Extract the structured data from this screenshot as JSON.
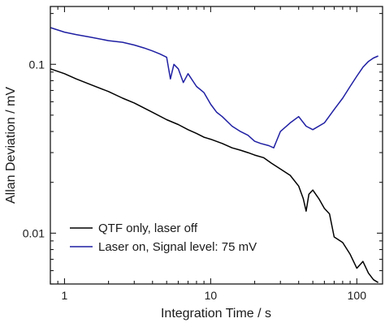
{
  "chart_data": {
    "type": "line",
    "title": "",
    "xlabel": "Integration Time / s",
    "ylabel": "Allan Deviation / mV",
    "xscale": "log",
    "yscale": "log",
    "xlim": [
      0.8,
      150
    ],
    "ylim": [
      0.005,
      0.22
    ],
    "xticks": [
      {
        "value": 1,
        "label": "1"
      },
      {
        "value": 10,
        "label": "10"
      },
      {
        "value": 100,
        "label": "100"
      }
    ],
    "yticks": [
      {
        "value": 0.01,
        "label": "0.01"
      },
      {
        "value": 0.1,
        "label": "0.1"
      }
    ],
    "grid": false,
    "legend_position": "bottom-left",
    "series": [
      {
        "name": "QTF only, laser off",
        "color": "#000000",
        "x": [
          0.8,
          1.0,
          1.2,
          1.5,
          2.0,
          2.5,
          3.0,
          4.0,
          5.0,
          6.0,
          7.0,
          8.0,
          9.0,
          10,
          12,
          14,
          16,
          18,
          20,
          23,
          26,
          30,
          35,
          40,
          43,
          45,
          47,
          50,
          55,
          60,
          65,
          70,
          80,
          90,
          100,
          110,
          120,
          130,
          140
        ],
        "y": [
          0.094,
          0.088,
          0.082,
          0.076,
          0.069,
          0.063,
          0.059,
          0.052,
          0.047,
          0.044,
          0.041,
          0.039,
          0.037,
          0.036,
          0.034,
          0.032,
          0.031,
          0.03,
          0.029,
          0.028,
          0.026,
          0.024,
          0.022,
          0.019,
          0.016,
          0.0135,
          0.017,
          0.018,
          0.016,
          0.014,
          0.013,
          0.0095,
          0.0088,
          0.0075,
          0.0062,
          0.0068,
          0.0058,
          0.0053,
          0.0051
        ]
      },
      {
        "name": "Laser on, Signal level: 75 mV",
        "color": "#1f1fa3",
        "x": [
          0.8,
          1.0,
          1.2,
          1.5,
          2.0,
          2.5,
          3.0,
          3.5,
          4.0,
          4.5,
          5.0,
          5.3,
          5.6,
          6.0,
          6.5,
          7.0,
          8.0,
          9.0,
          10,
          11,
          12,
          14,
          16,
          18,
          20,
          22,
          25,
          27,
          30,
          35,
          40,
          45,
          50,
          60,
          70,
          80,
          90,
          100,
          110,
          120,
          130,
          140
        ],
        "y": [
          0.165,
          0.155,
          0.15,
          0.145,
          0.138,
          0.135,
          0.13,
          0.125,
          0.12,
          0.115,
          0.11,
          0.082,
          0.1,
          0.094,
          0.078,
          0.088,
          0.074,
          0.068,
          0.058,
          0.052,
          0.049,
          0.043,
          0.04,
          0.038,
          0.035,
          0.034,
          0.033,
          0.032,
          0.04,
          0.045,
          0.049,
          0.043,
          0.041,
          0.045,
          0.054,
          0.063,
          0.074,
          0.085,
          0.096,
          0.104,
          0.109,
          0.112
        ]
      }
    ]
  }
}
